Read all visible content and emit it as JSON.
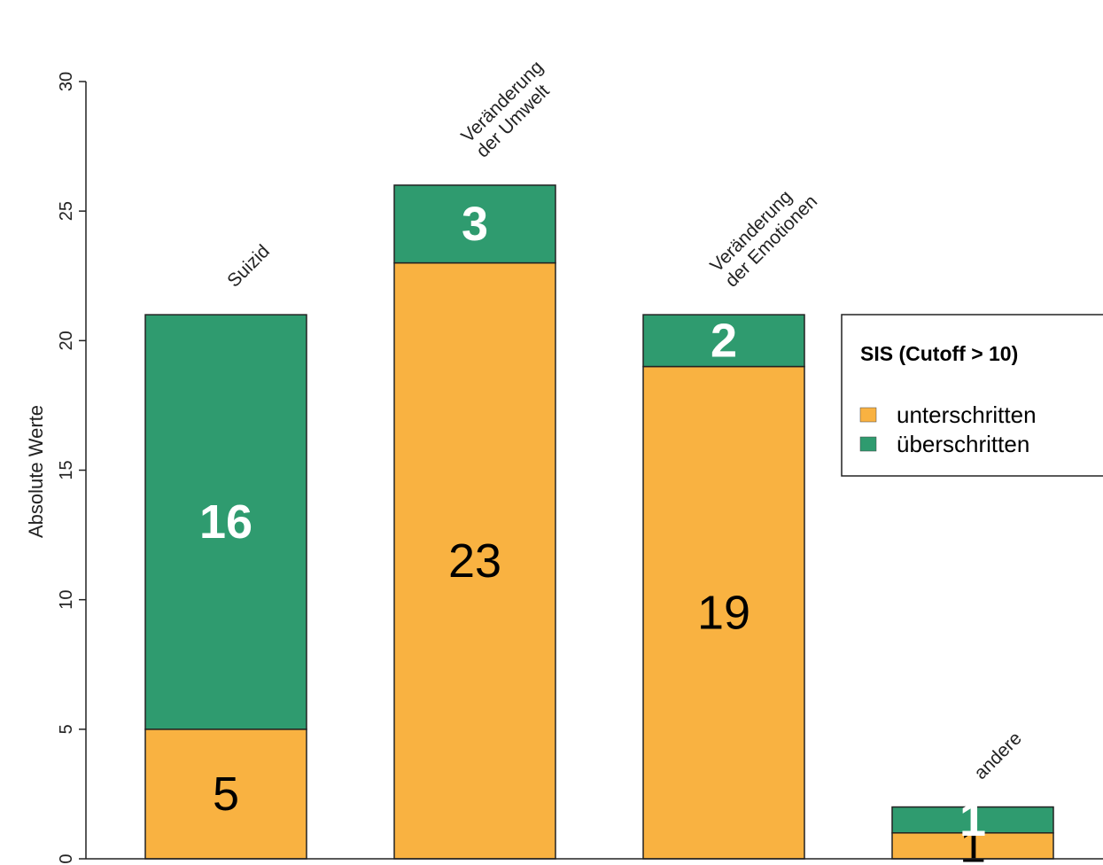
{
  "chart_data": {
    "type": "bar",
    "stacked": true,
    "categories": [
      [
        "Suizid"
      ],
      [
        "Veränderung",
        "der Umwelt"
      ],
      [
        "Veränderung",
        "der Emotionen"
      ],
      [
        "andere"
      ]
    ],
    "series": [
      {
        "name": "unterschritten",
        "values": [
          5,
          23,
          19,
          1
        ],
        "color": "#f9b241"
      },
      {
        "name": "überschritten",
        "values": [
          16,
          3,
          2,
          1
        ],
        "color": "#2f9b6f"
      }
    ],
    "ylabel": "Absolute Werte",
    "ylim": [
      0,
      30
    ],
    "yticks": [
      0,
      5,
      10,
      15,
      20,
      25,
      30
    ],
    "legend": {
      "title": "SIS (Cutoff > 10)",
      "position": "right"
    },
    "grid": false
  }
}
